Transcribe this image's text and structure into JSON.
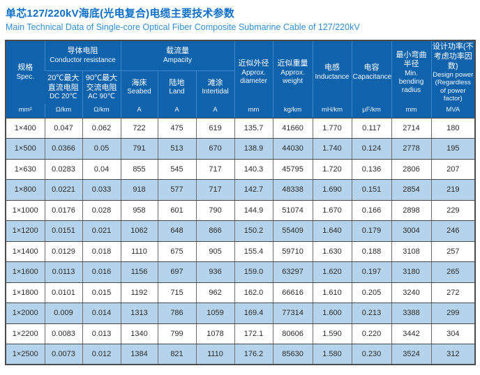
{
  "title": "单芯127/220kV海底(光电复合)电缆主要技术参数",
  "subtitle": "Main Technical Data of Single-core Optical Fiber Composite Submarine Cable of 127/220kV",
  "colors": {
    "title_blue": "#0b6fc7",
    "subtitle_blue": "#2e8ed2",
    "header_bg": "#0e63ac",
    "header_divider": "#3e88c7",
    "alt_row_bg": "#b5d3ea",
    "grid_dark": "#474747"
  },
  "table": {
    "header": {
      "spec": {
        "zh": "规格",
        "en": "Spec.",
        "unit": "mm²"
      },
      "groups": [
        {
          "zh": "导体电阻",
          "en": "Conductor resistance",
          "children": [
            {
              "zh": "20℃最大直流电阻",
              "en": "DC 20℃",
              "unit": "Ω/km"
            },
            {
              "zh": "90℃最大交流电阻",
              "en": "AC 90℃",
              "unit": "Ω/km"
            }
          ]
        },
        {
          "zh": "载流量",
          "en": "Ampacity",
          "children": [
            {
              "zh": "海床",
              "en": "Seabed",
              "unit": "A"
            },
            {
              "zh": "陆地",
              "en": "Land",
              "unit": "A"
            },
            {
              "zh": "滩涂",
              "en": "Intertidal",
              "unit": "A"
            }
          ]
        }
      ],
      "singles": [
        {
          "zh": "近似外径",
          "en": "Approx. diameter",
          "unit": "mm"
        },
        {
          "zh": "近似重量",
          "en": "Approx. weight",
          "unit": "kg/km"
        },
        {
          "zh": "电感",
          "en": "Inductance",
          "unit": "mH/km"
        },
        {
          "zh": "电容",
          "en": "Capacitance",
          "unit": "μF/km"
        },
        {
          "zh": "最小弯曲半径",
          "en": "Min. bending radius",
          "unit": "mm"
        },
        {
          "zh": "设计功率(不考虑功率因数)",
          "en": "Design power (Regardless of power factor)",
          "unit": "MVA"
        }
      ]
    },
    "rows": [
      [
        "1×400",
        "0.047",
        "0.062",
        "722",
        "475",
        "619",
        "135.7",
        "41660",
        "1.770",
        "0.117",
        "2714",
        "180"
      ],
      [
        "1×500",
        "0.0366",
        "0.05",
        "791",
        "513",
        "670",
        "138.9",
        "44030",
        "1.740",
        "0.124",
        "2778",
        "195"
      ],
      [
        "1×630",
        "0.0283",
        "0.04",
        "855",
        "545",
        "717",
        "140.3",
        "45795",
        "1.720",
        "0.136",
        "2806",
        "207"
      ],
      [
        "1×800",
        "0.0221",
        "0.033",
        "918",
        "577",
        "717",
        "142.7",
        "48338",
        "1.690",
        "0.151",
        "2854",
        "219"
      ],
      [
        "1×1000",
        "0.0176",
        "0.028",
        "958",
        "601",
        "790",
        "144.9",
        "51074",
        "1.670",
        "0.166",
        "2898",
        "229"
      ],
      [
        "1×1200",
        "0.0151",
        "0.021",
        "1062",
        "648",
        "866",
        "150.2",
        "55409",
        "1.640",
        "0.179",
        "3004",
        "246"
      ],
      [
        "1×1400",
        "0.0129",
        "0.018",
        "1110",
        "675",
        "905",
        "155.4",
        "59710",
        "1.630",
        "0.188",
        "3108",
        "257"
      ],
      [
        "1×1600",
        "0.0113",
        "0.016",
        "1156",
        "697",
        "936",
        "159.0",
        "63297",
        "1.620",
        "0.197",
        "3180",
        "265"
      ],
      [
        "1×1800",
        "0.0101",
        "0.015",
        "1192",
        "715",
        "962",
        "162.0",
        "66616",
        "1.610",
        "0.205",
        "3240",
        "272"
      ],
      [
        "1×2000",
        "0.009",
        "0.014",
        "1313",
        "786",
        "1059",
        "169.4",
        "77314",
        "1.600",
        "0.213",
        "3388",
        "299"
      ],
      [
        "1×2200",
        "0.0083",
        "0.013",
        "1340",
        "799",
        "1078",
        "172.1",
        "80606",
        "1.590",
        "0.220",
        "3442",
        "304"
      ],
      [
        "1×2500",
        "0.0073",
        "0.012",
        "1384",
        "821",
        "1110",
        "176.2",
        "85630",
        "1.580",
        "0.230",
        "3524",
        "312"
      ]
    ]
  }
}
